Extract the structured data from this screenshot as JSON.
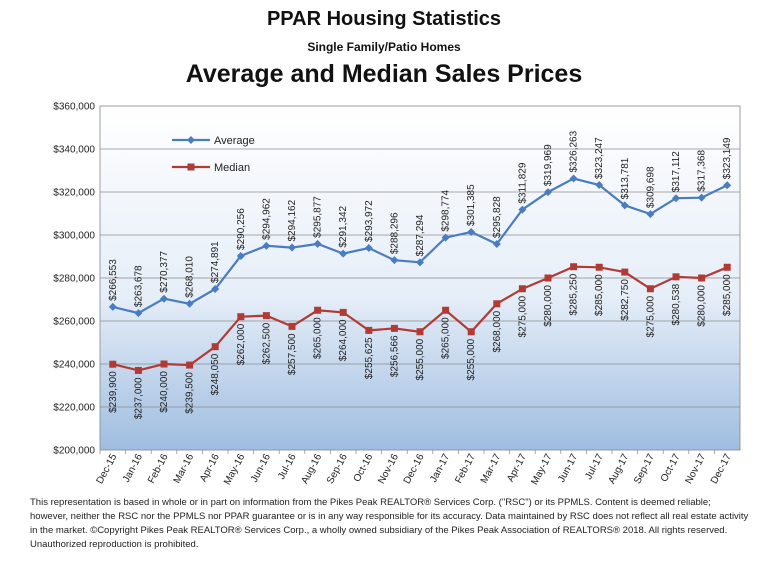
{
  "header": {
    "title": "PPAR Housing Statistics",
    "subtitle": "Single Family/Patio Homes",
    "chart_title": "Average and Median Sales Prices"
  },
  "chart_data": {
    "type": "line",
    "title": "Average and Median Sales Prices",
    "xlabel": "",
    "ylabel": "",
    "ylim": [
      200000,
      360000
    ],
    "y_ticks": [
      "$200,000",
      "$220,000",
      "$240,000",
      "$260,000",
      "$280,000",
      "$300,000",
      "$320,000",
      "$340,000",
      "$360,000"
    ],
    "grid": true,
    "legend_position": "top-left",
    "categories": [
      "Dec-15",
      "Jan-16",
      "Feb-16",
      "Mar-16",
      "Apr-16",
      "May-16",
      "Jun-16",
      "Jul-16",
      "Aug-16",
      "Sep-16",
      "Oct-16",
      "Nov-16",
      "Dec-16",
      "Jan-17",
      "Feb-17",
      "Mar-17",
      "Apr-17",
      "May-17",
      "Jun-17",
      "Jul-17",
      "Aug-17",
      "Sep-17",
      "Oct-17",
      "Nov-17",
      "Dec-17"
    ],
    "series": [
      {
        "name": "Average",
        "color": "#4a7cc0",
        "marker": "diamond",
        "values": [
          266553,
          263678,
          270377,
          268010,
          274891,
          290256,
          294962,
          294162,
          295877,
          291342,
          293972,
          288296,
          287294,
          298774,
          301385,
          295828,
          311829,
          319969,
          326263,
          323247,
          313781,
          309698,
          317112,
          317368,
          323149
        ],
        "labels": [
          "$266,553",
          "$263,678",
          "$270,377",
          "$268,010",
          "$274,891",
          "$290,256",
          "$294,962",
          "$294,162",
          "$295,877",
          "$291,342",
          "$293,972",
          "$288,296",
          "$287,294",
          "$298,774",
          "$301,385",
          "$295,828",
          "$311,829",
          "$319,969",
          "$326,263",
          "$323,247",
          "$313,781",
          "$309,698",
          "$317,112",
          "$317,368",
          "$323,149"
        ]
      },
      {
        "name": "Median",
        "color": "#b23a35",
        "marker": "square",
        "values": [
          239900,
          237000,
          240000,
          239500,
          248050,
          262000,
          262500,
          257500,
          265000,
          264000,
          255625,
          256566,
          255000,
          265000,
          255000,
          268000,
          275000,
          280000,
          285250,
          285000,
          282750,
          275000,
          280538,
          280000,
          285000
        ],
        "labels": [
          "$239,900",
          "$237,000",
          "$240,000",
          "$239,500",
          "$248,050",
          "$262,000",
          "$262,500",
          "$257,500",
          "$265,000",
          "$264,000",
          "$255,625",
          "$256,566",
          "$255,000",
          "$265,000",
          "$255,000",
          "$268,000",
          "$275,000",
          "$280,000",
          "$285,250",
          "$285,000",
          "$282,750",
          "$275,000",
          "$280,538",
          "$280,000",
          "$285,000"
        ]
      }
    ]
  },
  "footer": {
    "text": "This representation is based in whole or in part on information from the Pikes Peak REALTOR® Services Corp. (\"RSC\") or its PPMLS. Content is deemed reliable; however, neither the RSC nor the PPMLS nor PPAR guarantee or is in any way responsible for its accuracy. Data maintained by RSC does not reflect all real estate activity in the market. ©Copyright Pikes Peak REALTOR® Services Corp., a wholly owned subsidiary of the Pikes Peak Association of REALTORS® 2018. All rights reserved. Unauthorized reproduction is prohibited."
  }
}
